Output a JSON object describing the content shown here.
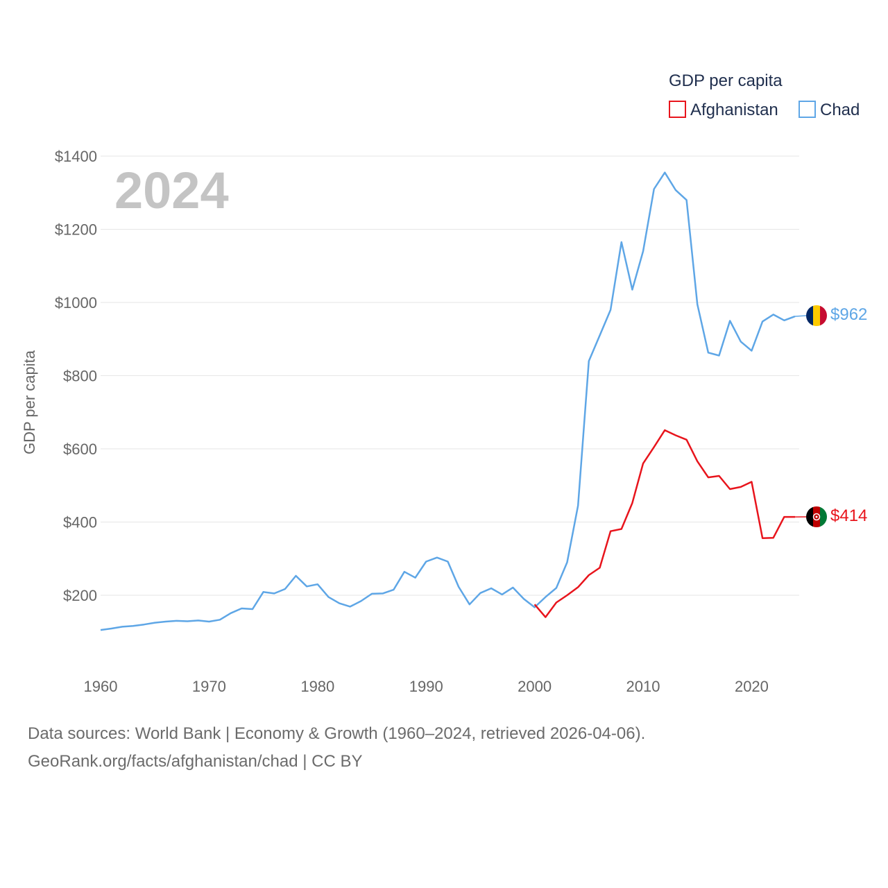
{
  "chart_data": {
    "type": "line",
    "year_label": "2024",
    "ylabel": "GDP per capita",
    "legend_title": "GDP per capita",
    "legend_position": "top-right",
    "xlim": [
      1960,
      2024
    ],
    "ylim": [
      60,
      1440
    ],
    "x_ticks": [
      1960,
      1970,
      1980,
      1990,
      2000,
      2010,
      2020
    ],
    "x_tick_labels": [
      "1960",
      "1970",
      "1980",
      "1990",
      "2000",
      "2010",
      "2020"
    ],
    "y_ticks": [
      200,
      400,
      600,
      800,
      1000,
      1200,
      1400
    ],
    "y_tick_labels": [
      "$200",
      "$400",
      "$600",
      "$800",
      "$1000",
      "$1200",
      "$1400"
    ],
    "grid": true,
    "series": [
      {
        "name": "Afghanistan",
        "color": "#e8141c",
        "end_label": "$414",
        "flag": "afghanistan-flag-icon",
        "x": [
          2000,
          2001,
          2002,
          2003,
          2004,
          2005,
          2006,
          2007,
          2008,
          2009,
          2010,
          2011,
          2012,
          2013,
          2014,
          2015,
          2016,
          2017,
          2018,
          2019,
          2020,
          2021,
          2022,
          2023,
          2024
        ],
        "values": [
          175,
          140,
          180,
          200,
          222,
          255,
          275,
          375,
          381,
          452,
          560,
          605,
          651,
          637,
          625,
          566,
          522,
          526,
          490,
          496,
          510,
          356,
          357,
          414,
          414
        ]
      },
      {
        "name": "Chad",
        "color": "#5ea6e6",
        "end_label": "$962",
        "flag": "chad-flag-icon",
        "x": [
          1960,
          1961,
          1962,
          1963,
          1964,
          1965,
          1966,
          1967,
          1968,
          1969,
          1970,
          1971,
          1972,
          1973,
          1974,
          1975,
          1976,
          1977,
          1978,
          1979,
          1980,
          1981,
          1982,
          1983,
          1984,
          1985,
          1986,
          1987,
          1988,
          1989,
          1990,
          1991,
          1992,
          1993,
          1994,
          1995,
          1996,
          1997,
          1998,
          1999,
          2000,
          2001,
          2002,
          2003,
          2004,
          2005,
          2006,
          2007,
          2008,
          2009,
          2010,
          2011,
          2012,
          2013,
          2014,
          2015,
          2016,
          2017,
          2018,
          2019,
          2020,
          2021,
          2022,
          2023,
          2024
        ],
        "values": [
          105,
          109,
          114,
          116,
          120,
          125,
          128,
          130,
          129,
          131,
          128,
          133,
          151,
          164,
          162,
          209,
          205,
          217,
          253,
          224,
          230,
          195,
          178,
          169,
          184,
          204,
          205,
          215,
          264,
          248,
          292,
          303,
          292,
          223,
          175,
          206,
          219,
          202,
          221,
          190,
          167,
          195,
          220,
          290,
          445,
          840,
          910,
          980,
          1165,
          1035,
          1140,
          1310,
          1355,
          1307,
          1280,
          995,
          863,
          855,
          950,
          893,
          868,
          948,
          967,
          951,
          962
        ]
      }
    ]
  },
  "footer": {
    "line1": "Data sources: World Bank | Economy & Growth (1960–2024, retrieved 2026-04-06).",
    "line2": "GeoRank.org/facts/afghanistan/chad | CC BY"
  }
}
